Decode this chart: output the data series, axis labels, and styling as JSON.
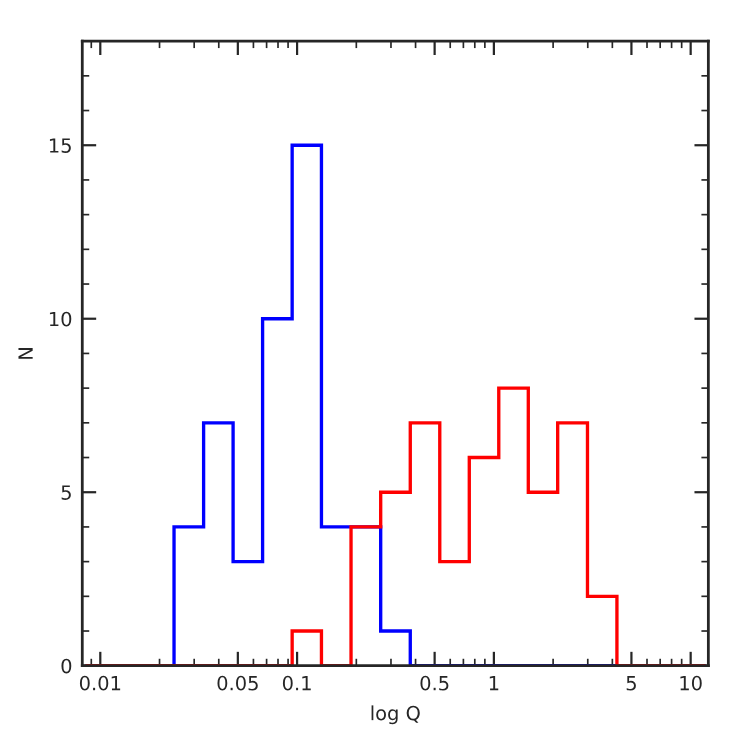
{
  "chart_data": {
    "type": "histogram",
    "xlabel": "log Q",
    "ylabel": "N",
    "log": "x",
    "bins": [
      0.00841,
      0.0119,
      0.0168,
      0.0237,
      0.0335,
      0.0473,
      0.0668,
      0.0944,
      0.133,
      0.188,
      0.266,
      0.376,
      0.531,
      0.75,
      1.059,
      1.496,
      2.11,
      2.99,
      4.22,
      5.96,
      8.41,
      11.9
    ],
    "series": [
      {
        "color": "#0000ff",
        "values": [
          0,
          0,
          0,
          4,
          7,
          3,
          10,
          15,
          4,
          4,
          1,
          0,
          0,
          0,
          0,
          0,
          0,
          0,
          0,
          0,
          0
        ]
      },
      {
        "color": "#ff0000",
        "values": [
          0,
          0,
          0,
          0,
          0,
          0,
          0,
          1,
          0,
          4,
          5,
          7,
          3,
          6,
          8,
          5,
          7,
          2,
          0,
          0,
          0
        ]
      }
    ],
    "xlim": [
      0.0081,
      12.3
    ],
    "xticks": [
      0.01,
      0.05,
      0.1,
      0.5,
      1,
      5,
      10
    ],
    "ylim": [
      0,
      18
    ],
    "yticks": [
      0,
      5,
      10,
      15
    ],
    "grid": false,
    "legend": false
  }
}
